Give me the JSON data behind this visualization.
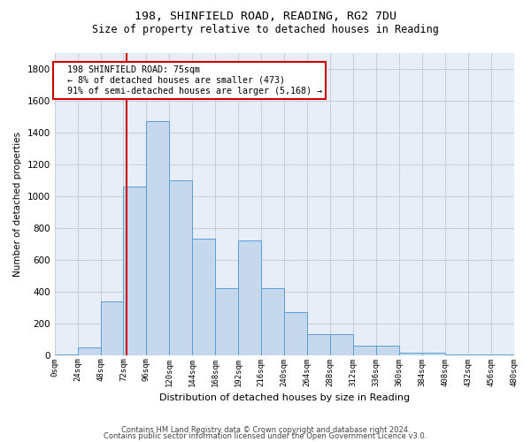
{
  "title_line1": "198, SHINFIELD ROAD, READING, RG2 7DU",
  "title_line2": "Size of property relative to detached houses in Reading",
  "xlabel": "Distribution of detached houses by size in Reading",
  "ylabel": "Number of detached properties",
  "footer_line1": "Contains HM Land Registry data © Crown copyright and database right 2024.",
  "footer_line2": "Contains public sector information licensed under the Open Government Licence v3.0.",
  "annotation_line1": "198 SHINFIELD ROAD: 75sqm",
  "annotation_line2": "← 8% of detached houses are smaller (473)",
  "annotation_line3": "91% of semi-detached houses are larger (5,168) →",
  "bar_values": [
    5,
    50,
    340,
    1060,
    1470,
    1100,
    730,
    420,
    720,
    420,
    270,
    130,
    130,
    60,
    60,
    15,
    15,
    5,
    2,
    2,
    0
  ],
  "bin_edges": [
    0,
    24,
    48,
    72,
    96,
    120,
    144,
    168,
    192,
    216,
    240,
    264,
    288,
    312,
    336,
    360,
    384,
    408,
    432,
    456,
    480
  ],
  "property_size": 75,
  "ylim": [
    0,
    1900
  ],
  "yticks": [
    0,
    200,
    400,
    600,
    800,
    1000,
    1200,
    1400,
    1600,
    1800
  ],
  "bar_color": "#c5d8ee",
  "bar_edge_color": "#5a9fd4",
  "vline_color": "#cc0000",
  "annotation_box_color": "#cc0000",
  "grid_color": "#c8d0e0",
  "bg_color": "#e8eef8"
}
